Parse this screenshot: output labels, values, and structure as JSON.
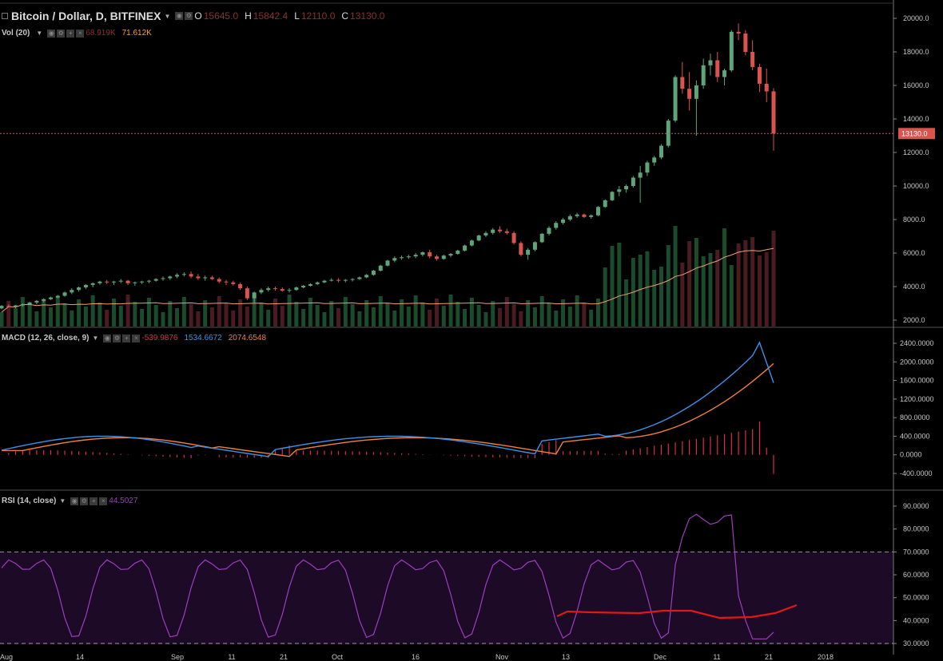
{
  "header": {
    "symbol": "Bitcoin / Dollar, D, BITFINEX",
    "ohlc": [
      {
        "label": "O",
        "value": "15645.0"
      },
      {
        "label": "H",
        "value": "15842.4"
      },
      {
        "label": "L",
        "value": "12110.0"
      },
      {
        "label": "C",
        "value": "13130.0"
      }
    ],
    "price_color": "#8b3030"
  },
  "vol": {
    "label": "Vol (20)",
    "value1": "68.919K",
    "value2": "71.612K",
    "color1": "#8b3030",
    "color2": "#ff9c3a"
  },
  "macd": {
    "label": "MACD (12, 26, close, 9)",
    "hist": "-539.9876",
    "macd": "1534.6672",
    "signal": "2074.6548",
    "hist_color": "#d9304a",
    "macd_color": "#3c92e8",
    "signal_color": "#f0803c"
  },
  "rsi": {
    "label": "RSI (14, close)",
    "value": "44.5027",
    "color": "#9c3fbf"
  },
  "last_price": "13130.0",
  "price_axis": [
    "20000.0",
    "18000.0",
    "16000.0",
    "14000.0",
    "12000.0",
    "10000.0",
    "8000.0",
    "6000.0",
    "4000.0",
    "2000.0"
  ],
  "macd_axis": [
    "2400.0000",
    "2000.0000",
    "1600.0000",
    "1200.0000",
    "800.0000",
    "400.0000",
    "0.0000",
    "-400.0000"
  ],
  "rsi_axis": [
    "90.0000",
    "80.0000",
    "70.0000",
    "60.0000",
    "50.0000",
    "40.0000",
    "30.0000"
  ],
  "time_axis": [
    "Aug",
    "14",
    "Sep",
    "11",
    "21",
    "Oct",
    "16",
    "Nov",
    "13",
    "Dec",
    "11",
    "21",
    "2018"
  ],
  "colors": {
    "up": "#5fa579",
    "down": "#d9534f",
    "bg": "#000000",
    "rsi_band": "#1c0a26",
    "grid": "#444444"
  },
  "chart_data": {
    "type": "candlestick",
    "ohlc": [
      [
        2700,
        2900,
        2650,
        2850
      ],
      [
        2850,
        2950,
        2750,
        2800
      ],
      [
        2800,
        2900,
        2700,
        2880
      ],
      [
        2880,
        3000,
        2800,
        2950
      ],
      [
        2950,
        3100,
        2900,
        3050
      ],
      [
        3050,
        3200,
        2950,
        3150
      ],
      [
        3150,
        3300,
        3050,
        3250
      ],
      [
        3250,
        3400,
        3200,
        3350
      ],
      [
        3350,
        3500,
        3300,
        3450
      ],
      [
        3450,
        3700,
        3400,
        3650
      ],
      [
        3650,
        3900,
        3550,
        3800
      ],
      [
        3800,
        4000,
        3700,
        3950
      ],
      [
        3950,
        4150,
        3850,
        4100
      ],
      [
        4100,
        4250,
        3950,
        4200
      ],
      [
        4200,
        4350,
        4100,
        4300
      ],
      [
        4300,
        4400,
        4150,
        4250
      ],
      [
        4250,
        4350,
        4100,
        4300
      ],
      [
        4300,
        4450,
        4200,
        4350
      ],
      [
        4350,
        4400,
        4100,
        4200
      ],
      [
        4200,
        4300,
        4050,
        4250
      ],
      [
        4250,
        4350,
        4150,
        4300
      ],
      [
        4300,
        4400,
        4200,
        4350
      ],
      [
        4350,
        4500,
        4300,
        4450
      ],
      [
        4450,
        4600,
        4350,
        4500
      ],
      [
        4500,
        4650,
        4400,
        4600
      ],
      [
        4600,
        4800,
        4500,
        4700
      ],
      [
        4700,
        4850,
        4600,
        4750
      ],
      [
        4750,
        4900,
        4500,
        4600
      ],
      [
        4600,
        4750,
        4400,
        4500
      ],
      [
        4500,
        4650,
        4350,
        4550
      ],
      [
        4550,
        4650,
        4400,
        4450
      ],
      [
        4450,
        4550,
        4200,
        4300
      ],
      [
        4300,
        4400,
        4100,
        4250
      ],
      [
        4250,
        4350,
        4050,
        4150
      ],
      [
        4150,
        4250,
        3800,
        3900
      ],
      [
        3900,
        4000,
        3200,
        3300
      ],
      [
        3300,
        3700,
        3000,
        3650
      ],
      [
        3650,
        3900,
        3550,
        3800
      ],
      [
        3800,
        4000,
        3700,
        3900
      ],
      [
        3900,
        4000,
        3750,
        3850
      ],
      [
        3850,
        3950,
        3700,
        3750
      ],
      [
        3750,
        3900,
        3650,
        3800
      ],
      [
        3800,
        4000,
        3750,
        3950
      ],
      [
        3950,
        4100,
        3900,
        4050
      ],
      [
        4050,
        4200,
        4000,
        4150
      ],
      [
        4150,
        4300,
        4100,
        4250
      ],
      [
        4250,
        4400,
        4200,
        4350
      ],
      [
        4350,
        4500,
        4300,
        4400
      ],
      [
        4400,
        4500,
        4250,
        4350
      ],
      [
        4350,
        4450,
        4250,
        4400
      ],
      [
        4400,
        4500,
        4300,
        4450
      ],
      [
        4450,
        4600,
        4400,
        4550
      ],
      [
        4550,
        4750,
        4500,
        4700
      ],
      [
        4700,
        5000,
        4650,
        4950
      ],
      [
        4950,
        5300,
        4900,
        5250
      ],
      [
        5250,
        5600,
        5200,
        5550
      ],
      [
        5550,
        5800,
        5450,
        5700
      ],
      [
        5700,
        5850,
        5600,
        5750
      ],
      [
        5750,
        5900,
        5650,
        5800
      ],
      [
        5800,
        6000,
        5700,
        5900
      ],
      [
        5900,
        6100,
        5800,
        6050
      ],
      [
        6050,
        6200,
        5700,
        5800
      ],
      [
        5800,
        5900,
        5550,
        5650
      ],
      [
        5650,
        5900,
        5600,
        5850
      ],
      [
        5850,
        6000,
        5750,
        5950
      ],
      [
        5950,
        6200,
        5900,
        6150
      ],
      [
        6150,
        6500,
        6100,
        6450
      ],
      [
        6450,
        6800,
        6400,
        6750
      ],
      [
        6750,
        7100,
        6700,
        7050
      ],
      [
        7050,
        7300,
        6950,
        7200
      ],
      [
        7200,
        7500,
        7100,
        7400
      ],
      [
        7400,
        7600,
        7200,
        7300
      ],
      [
        7300,
        7450,
        7100,
        7200
      ],
      [
        7200,
        7300,
        6500,
        6600
      ],
      [
        6600,
        6700,
        5800,
        5900
      ],
      [
        5900,
        6300,
        5600,
        6200
      ],
      [
        6200,
        6700,
        6100,
        6650
      ],
      [
        6650,
        7200,
        6600,
        7150
      ],
      [
        7150,
        7600,
        7050,
        7500
      ],
      [
        7500,
        7900,
        7400,
        7800
      ],
      [
        7800,
        8100,
        7700,
        8000
      ],
      [
        8000,
        8300,
        7900,
        8200
      ],
      [
        8200,
        8400,
        8100,
        8300
      ],
      [
        8300,
        8350,
        8100,
        8150
      ],
      [
        8150,
        8300,
        8050,
        8250
      ],
      [
        8250,
        8800,
        8200,
        8750
      ],
      [
        8750,
        9200,
        8700,
        9150
      ],
      [
        9150,
        9700,
        9100,
        9650
      ],
      [
        9650,
        10000,
        9400,
        9800
      ],
      [
        9800,
        10100,
        9600,
        10000
      ],
      [
        10000,
        10600,
        9900,
        10500
      ],
      [
        10500,
        11200,
        9000,
        10800
      ],
      [
        10800,
        11500,
        10600,
        11400
      ],
      [
        11400,
        11800,
        11200,
        11700
      ],
      [
        11700,
        12500,
        11600,
        12400
      ],
      [
        12400,
        14000,
        12300,
        13900
      ],
      [
        13900,
        16600,
        13800,
        16500
      ],
      [
        16500,
        17400,
        15500,
        15800
      ],
      [
        15800,
        16800,
        14500,
        15200
      ],
      [
        15200,
        16300,
        13000,
        16000
      ],
      [
        16000,
        17600,
        15800,
        17200
      ],
      [
        17200,
        17900,
        16600,
        17500
      ],
      [
        17500,
        18000,
        16200,
        16500
      ],
      [
        16500,
        17000,
        16000,
        16900
      ],
      [
        16900,
        19300,
        16800,
        19200
      ],
      [
        19200,
        19700,
        18700,
        19100
      ],
      [
        19100,
        19300,
        17800,
        18000
      ],
      [
        18000,
        18700,
        16900,
        17100
      ],
      [
        17100,
        17300,
        15600,
        16100
      ],
      [
        16100,
        17000,
        15000,
        15645
      ],
      [
        15645,
        15842,
        12110,
        13130
      ]
    ],
    "volume_ma": true,
    "macd_signal_range": [
      -400,
      2400
    ],
    "rsi_levels": [
      70,
      30
    ]
  }
}
